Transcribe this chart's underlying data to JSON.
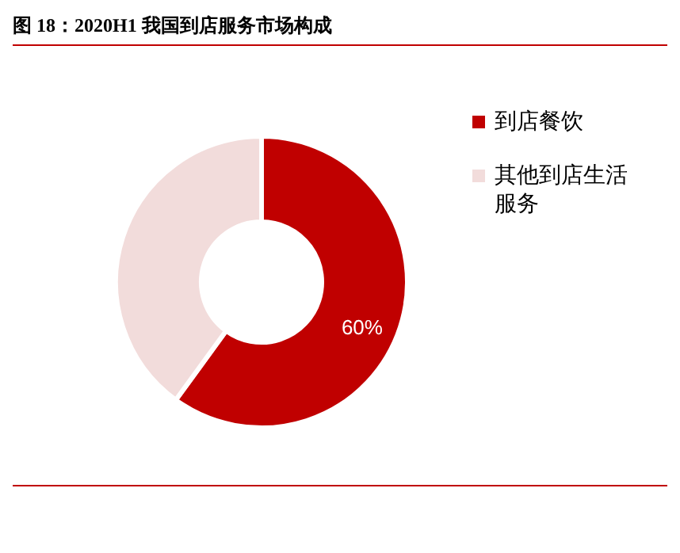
{
  "chart_data": {
    "type": "donut",
    "title": "图 18：2020H1 我国到店服务市场构成",
    "categories": [
      "到店餐饮",
      "其他到店生活服务"
    ],
    "values": [
      60,
      40
    ],
    "colors": [
      "#c00000",
      "#f2dcdb"
    ],
    "value_labels": [
      "60%",
      null
    ],
    "legend": "right"
  }
}
